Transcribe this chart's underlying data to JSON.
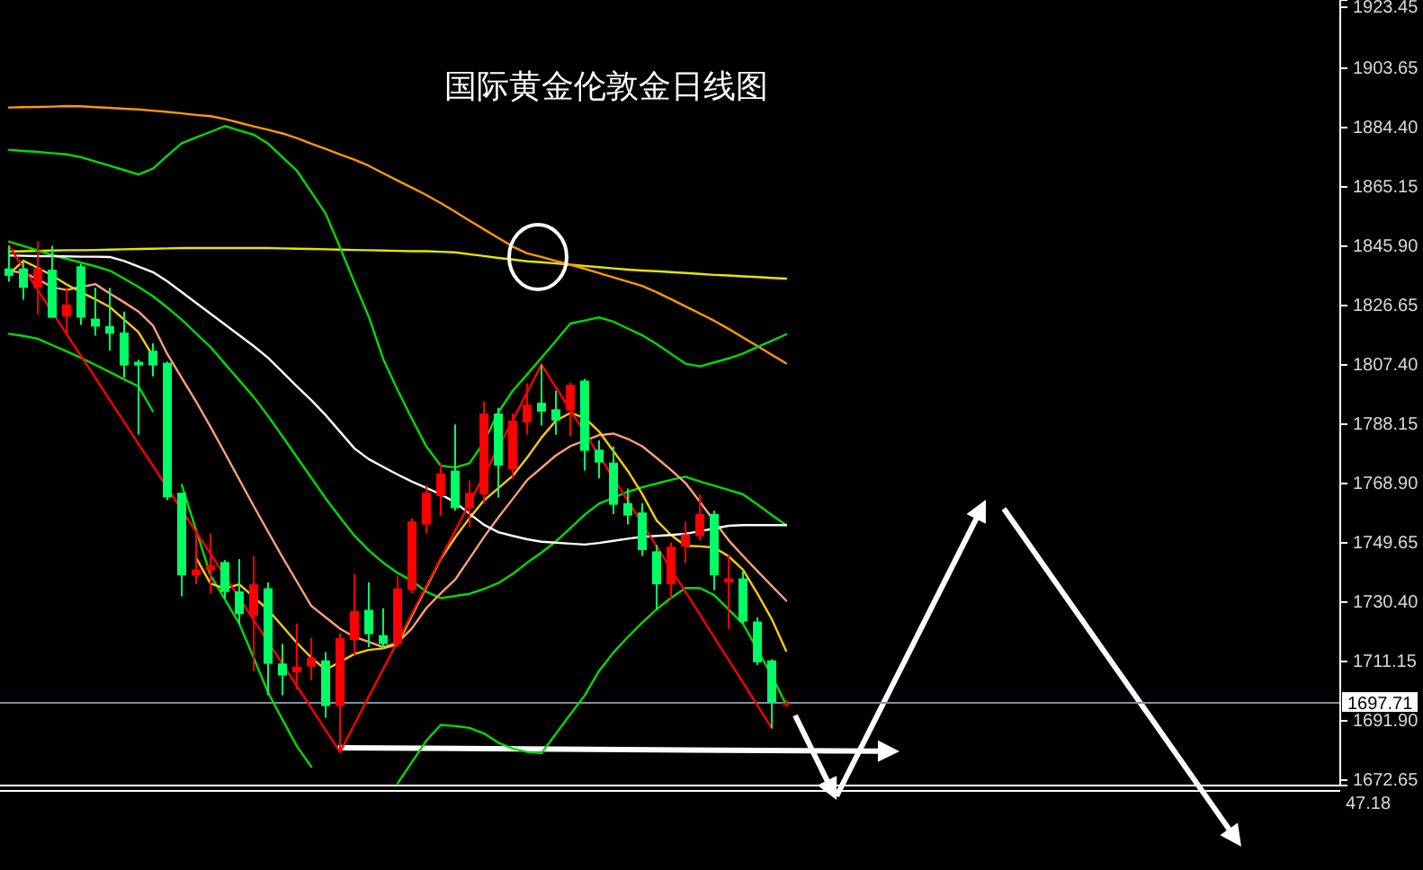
{
  "chart_data": {
    "type": "candlestick",
    "title": "国际黄金伦敦金日线图",
    "categories": [
      null,
      null,
      null,
      null,
      null,
      null,
      null,
      null,
      null,
      null,
      null,
      null,
      null,
      null,
      null,
      null,
      null,
      null,
      null,
      null,
      null,
      null,
      null,
      null,
      null,
      null,
      null,
      null,
      null,
      null,
      null,
      null,
      null,
      null,
      null,
      null,
      null,
      null,
      null,
      null,
      null,
      null,
      null,
      null,
      null,
      null,
      null,
      null,
      null,
      null,
      null,
      null,
      null,
      null,
      null
    ],
    "ohlc": [
      [
        1838.7,
        1846.0,
        1834.4,
        1836.3
      ],
      [
        1838.7,
        1841.2,
        1828.5,
        1832.4
      ],
      [
        1832.4,
        1847.6,
        1823.7,
        1838.7
      ],
      [
        1838.3,
        1846.0,
        1822.7,
        1822.7
      ],
      [
        1823.1,
        1832.4,
        1816.9,
        1827.0
      ],
      [
        1839.4,
        1840.2,
        1820.4,
        1822.7
      ],
      [
        1822.4,
        1832.4,
        1816.9,
        1819.8
      ],
      [
        1820.0,
        1832.4,
        1812.0,
        1817.5
      ],
      [
        1817.9,
        1824.7,
        1803.3,
        1807.2
      ],
      [
        1808.4,
        1809.1,
        1784.8,
        1807.2
      ],
      [
        1812.0,
        1814.4,
        1803.7,
        1807.2
      ],
      [
        1808.1,
        1808.5,
        1763.5,
        1764.4
      ],
      [
        1765.9,
        1765.9,
        1732.3,
        1739.1
      ],
      [
        1739.1,
        1752.7,
        1736.2,
        1741.0
      ],
      [
        1740.7,
        1752.7,
        1733.3,
        1742.4
      ],
      [
        1743.4,
        1744.0,
        1731.4,
        1733.7
      ],
      [
        1733.9,
        1744.4,
        1723.5,
        1726.5
      ],
      [
        1725.9,
        1745.4,
        1708.0,
        1736.2
      ],
      [
        1734.9,
        1736.8,
        1700.2,
        1710.4
      ],
      [
        1710.5,
        1716.8,
        1700.2,
        1706.6
      ],
      [
        1707.6,
        1723.5,
        1702.2,
        1709.5
      ],
      [
        1709.5,
        1718.7,
        1705.1,
        1712.3
      ],
      [
        1711.5,
        1714.2,
        1692.9,
        1696.7
      ],
      [
        1696.7,
        1720.3,
        1681.8,
        1718.7
      ],
      [
        1718.1,
        1739.5,
        1712.9,
        1727.5
      ],
      [
        1727.9,
        1736.8,
        1715.8,
        1720.0
      ],
      [
        1719.7,
        1728.4,
        1715.4,
        1716.8
      ],
      [
        1716.8,
        1739.1,
        1715.8,
        1734.9
      ],
      [
        1734.3,
        1757.6,
        1733.3,
        1756.6
      ],
      [
        1755.6,
        1768.3,
        1752.7,
        1765.9
      ],
      [
        1764.8,
        1775.7,
        1758.5,
        1772.2
      ],
      [
        1773.1,
        1788.1,
        1760.1,
        1760.9
      ],
      [
        1760.9,
        1769.9,
        1754.7,
        1765.9
      ],
      [
        1765.4,
        1795.5,
        1762.4,
        1791.6
      ],
      [
        1791.6,
        1793.5,
        1764.4,
        1774.7
      ],
      [
        1773.5,
        1791.6,
        1770.6,
        1789.3
      ],
      [
        1788.7,
        1801.4,
        1784.8,
        1794.5
      ],
      [
        1795.1,
        1807.5,
        1787.7,
        1792.2
      ],
      [
        1793.0,
        1799.0,
        1784.8,
        1789.3
      ],
      [
        1792.6,
        1801.7,
        1784.2,
        1800.9
      ],
      [
        1802.3,
        1802.9,
        1773.1,
        1779.5
      ],
      [
        1779.9,
        1782.9,
        1770.6,
        1775.7
      ],
      [
        1775.7,
        1780.9,
        1759.0,
        1762.0
      ],
      [
        1762.5,
        1767.3,
        1755.6,
        1758.5
      ],
      [
        1759.5,
        1762.5,
        1745.4,
        1747.3
      ],
      [
        1746.9,
        1748.9,
        1727.9,
        1736.2
      ],
      [
        1736.2,
        1749.8,
        1731.4,
        1748.4
      ],
      [
        1748.4,
        1756.6,
        1743.0,
        1752.4
      ],
      [
        1751.8,
        1765.4,
        1750.4,
        1759.0
      ],
      [
        1759.0,
        1760.1,
        1734.3,
        1739.1
      ],
      [
        1736.8,
        1745.9,
        1721.6,
        1738.1
      ],
      [
        1738.1,
        1741.0,
        1723.5,
        1724.1
      ],
      [
        1724.1,
        1725.5,
        1710.0,
        1710.9
      ],
      [
        1711.5,
        1711.9,
        1689.5,
        1697.9
      ],
      [
        1697.5,
        1698.7,
        1696.4,
        1697.71
      ]
    ],
    "colors": [
      "#00ff66",
      "#00ff66",
      "#ff0000",
      "#00ff66",
      "#ff0000",
      "#00ff66",
      "#00ff66",
      "#00ff66",
      "#00ff66",
      "#00ff66",
      "#00ff66",
      "#00ff66",
      "#00ff66",
      "#ff0000",
      "#ff0000",
      "#00ff66",
      "#00ff66",
      "#ff0000",
      "#00ff66",
      "#00ff66",
      "#ff0000",
      "#ff0000",
      "#00ff66",
      "#ff0000",
      "#ff0000",
      "#00ff66",
      "#00ff66",
      "#ff0000",
      "#ff0000",
      "#ff0000",
      "#ff0000",
      "#00ff66",
      "#ff0000",
      "#ff0000",
      "#00ff66",
      "#ff0000",
      "#ff0000",
      "#00ff66",
      "#00ff66",
      "#ff0000",
      "#00ff66",
      "#00ff66",
      "#00ff66",
      "#00ff66",
      "#00ff66",
      "#00ff66",
      "#ff0000",
      "#ff0000",
      "#ff0000",
      "#00ff66",
      "#ff0000",
      "#00ff66",
      "#00ff66",
      "#00ff66",
      "#ff0000"
    ],
    "series": [
      {
        "type": "line",
        "color": "#e6e600",
        "values": [
          1844.2,
          1844.3,
          1844.4,
          1844.5,
          1844.6,
          1844.6,
          1844.7,
          1844.8,
          1844.9,
          1845.0,
          1845.1,
          1845.2,
          1845.3,
          1845.3,
          1845.3,
          1845.3,
          1845.3,
          1845.3,
          1845.3,
          1845.2,
          1845.1,
          1845.0,
          1844.9,
          1844.8,
          1844.7,
          1844.6,
          1844.5,
          1844.4,
          1844.3,
          1844.3,
          1844.1,
          1843.9,
          1843.3,
          1842.7,
          1842.1,
          1841.6,
          1841.0,
          1840.7,
          1840.3,
          1839.9,
          1839.5,
          1839.1,
          1838.7,
          1838.3,
          1838.0,
          1837.8,
          1837.5,
          1837.2,
          1836.9,
          1836.6,
          1836.4,
          1836.1,
          1835.9,
          1835.6,
          1835.4
        ]
      },
      {
        "type": "line",
        "color": "#ff9900",
        "values": [
          1890.9,
          1891.0,
          1891.1,
          1891.2,
          1891.4,
          1891.3,
          1891.0,
          1890.8,
          1890.5,
          1890.3,
          1889.9,
          1889.5,
          1889.0,
          1888.5,
          1888.1,
          1887.2,
          1886.0,
          1884.8,
          1883.7,
          1882.5,
          1881.0,
          1879.2,
          1877.5,
          1875.7,
          1874.0,
          1872.0,
          1869.6,
          1867.2,
          1864.9,
          1862.5,
          1859.9,
          1857.1,
          1854.2,
          1851.4,
          1848.6,
          1845.8,
          1843.6,
          1842.4,
          1841.1,
          1839.9,
          1838.6,
          1837.2,
          1835.8,
          1834.4,
          1833.0,
          1831.0,
          1828.7,
          1826.4,
          1824.1,
          1821.7,
          1819.1,
          1816.3,
          1813.5,
          1810.7,
          1807.9
        ]
      },
      {
        "type": "line",
        "color": "#00dd00",
        "values": [
          1877.2,
          1876.8,
          1876.5,
          1876.1,
          1875.7,
          1874.8,
          1873.4,
          1872.0,
          1870.6,
          1869.2,
          1871.1,
          1875.3,
          1879.3,
          1881.2,
          1883.0,
          1884.9,
          1883.5,
          1882.1,
          1879.2,
          1874.8,
          1870.4,
          1863.5,
          1856.5,
          1845.5,
          1834.1,
          1823.0,
          1809.3,
          1799.2,
          1789.9,
          1780.9,
          1774.7,
          1774.1,
          1775.5,
          1782.3,
          1792.0,
          1799.0,
          1804.3,
          1809.7,
          1815.2,
          1820.8,
          1821.8,
          1822.8,
          1821.4,
          1819.2,
          1817.0,
          1814.2,
          1811.0,
          1807.8,
          1806.9,
          1808.2,
          1809.5,
          1811.1,
          1813.2,
          1815.2,
          1817.3
        ]
      },
      {
        "type": "line",
        "color": "#00dd00",
        "values": [
          1847.4,
          1846.0,
          1844.5,
          1843.1,
          1841.8,
          1840.6,
          1839.4,
          1838.0,
          1835.4,
          1832.7,
          1829.7,
          1826.0,
          1822.1,
          1817.6,
          1813.2,
          1807.8,
          1802.4,
          1797.0,
          1790.8,
          1784.2,
          1777.5,
          1770.8,
          1764.1,
          1757.9,
          1752.0,
          1747.2,
          1743.2,
          1739.9,
          1737.3,
          1733.8,
          1731.7,
          1732.4,
          1733.1,
          1734.7,
          1736.6,
          1739.6,
          1743.2,
          1746.5,
          1750.1,
          1754.4,
          1758.8,
          1762.4,
          1764.3,
          1766.2,
          1767.7,
          1768.9,
          1770.1,
          1771.1,
          1769.6,
          1768.2,
          1766.8,
          1765.4,
          1762.1,
          1758.7,
          1755.4
        ]
      },
      {
        "type": "line",
        "color": "#00dd00",
        "values": [
          1817.5,
          1816.8,
          1815.9,
          1813.8,
          1811.8,
          1809.7,
          1807.4,
          1805.1,
          1802.7,
          1800.4,
          1792.3,
          null,
          1768.5,
          1753.8,
          1739.1,
          1731.3,
          1723.4,
          1712.3,
          1701.1,
          1692.3,
          1683.7,
          1677.0,
          null,
          null,
          null,
          null,
          null,
          null,
          null,
          null,
          null,
          null,
          null,
          null,
          null,
          null,
          null,
          null,
          null,
          null,
          null,
          null,
          null,
          null,
          null,
          null,
          null,
          null,
          null,
          null,
          null,
          null,
          null,
          null,
          null
        ]
      },
      {
        "type": "line",
        "color": "#00dd00",
        "values": [
          null,
          null,
          null,
          null,
          null,
          null,
          null,
          null,
          null,
          null,
          null,
          null,
          null,
          null,
          null,
          null,
          null,
          null,
          null,
          null,
          null,
          null,
          null,
          null,
          null,
          null,
          null,
          1671.6,
          1678.5,
          1685.5,
          1690.6,
          1690.2,
          1689.6,
          1687.8,
          1684.8,
          1682.9,
          1681.8,
          1681.4,
          1687.7,
          1694.0,
          1700.1,
          1708.1,
          1714.1,
          1719.1,
          1723.8,
          1728.1,
          1731.8,
          1735.0,
          1735.0,
          1732.7,
          1728.0,
          1723.4,
          1715.0,
          1706.6,
          1697.1
        ]
      },
      {
        "type": "line",
        "color": "#ffa07a",
        "values": [
          1837.9,
          1837.3,
          1835.2,
          1832.6,
          1831.7,
          1832.7,
          1833.6,
          1830.6,
          1827.7,
          1824.7,
          1820.2,
          1810.9,
          1803.2,
          1795.5,
          1787.3,
          1778.8,
          1770.2,
          1761.6,
          1753.3,
          1745.0,
          1737.1,
          1729.2,
          1725.5,
          1721.8,
          1719.1,
          1717.5,
          1715.8,
          1717.2,
          1721.9,
          1728.5,
          1733.3,
          1737.7,
          1744.6,
          1751.5,
          1757.9,
          1763.9,
          1770.0,
          1774.0,
          1778.0,
          1781.0,
          1782.8,
          1784.6,
          1785.1,
          1783.4,
          1781.0,
          1777.2,
          1773.3,
          1769.1,
          1763.0,
          1756.7,
          1750.5,
          1745.4,
          1740.5,
          1735.7,
          1730.9
        ]
      },
      {
        "type": "line",
        "color": "#ffcc00",
        "values": [
          1836.8,
          1841.2,
          1838.9,
          1836.4,
          1833.5,
          1831.0,
          1828.7,
          1826.2,
          1822.1,
          1818.0,
          1810.2,
          null,
          null,
          1744.8,
          1736.4,
          1734.9,
          1736.2,
          1732.1,
          1727.9,
          1722.6,
          1717.2,
          1712.4,
          1708.5,
          1711.0,
          1713.6,
          1714.9,
          1715.4,
          1716.7,
          1726.0,
          1735.2,
          1744.4,
          1751.4,
          1757.7,
          1763.4,
          1767.4,
          1771.4,
          1777.3,
          1783.8,
          1789.3,
          1791.8,
          1790.2,
          1785.8,
          1779.4,
          1773.0,
          1765.5,
          1756.9,
          1752.2,
          1748.7,
          1748.5,
          1748.1,
          1745.3,
          1740.9,
          1733.2,
          1724.9,
          1714.6
        ]
      },
      {
        "type": "line",
        "color": "#ffffff",
        "values": [
          1842.9,
          1842.8,
          1842.7,
          1842.7,
          1842.6,
          1842.5,
          1842.5,
          1842.4,
          1841.1,
          1839.3,
          1837.5,
          1834.5,
          1831.0,
          1827.5,
          1824.0,
          1820.5,
          1817.0,
          1813.5,
          1809.7,
          1805.1,
          1800.4,
          1796.0,
          1791.1,
          1785.7,
          1780.3,
          1776.8,
          1774.3,
          1771.8,
          1769.5,
          1767.5,
          1765.4,
          1762.8,
          1759.1,
          1755.5,
          1753.1,
          1751.9,
          1750.8,
          1750.0,
          1749.7,
          1749.4,
          1749.1,
          1749.6,
          1750.3,
          1751.0,
          1751.6,
          1751.9,
          1752.2,
          1752.6,
          1753.4,
          1754.3,
          1755.2,
          1755.4,
          1755.4,
          1755.4,
          1755.4
        ]
      },
      {
        "type": "line",
        "color": "#ff0000",
        "values": [
          1846.0,
          1838.9,
          1831.7,
          1824.6,
          1817.4,
          1810.3,
          1803.2,
          1796.0,
          1788.9,
          1781.7,
          1774.6,
          1767.5,
          1760.3,
          1753.2,
          1746.1,
          1738.9,
          1731.8,
          1724.6,
          1717.5,
          1710.4,
          1703.2,
          1696.1,
          1688.9,
          1681.8,
          1690.8,
          1699.8,
          1708.7,
          1717.7,
          1726.7,
          1735.7,
          1744.7,
          1753.6,
          1762.6,
          1771.6,
          1780.6,
          1789.5,
          1798.5,
          1807.5,
          1800.1,
          1792.8,
          1785.4,
          1778.0,
          1770.6,
          1763.3,
          1755.9,
          1748.5,
          1741.1,
          1733.8,
          1726.4,
          1719.0,
          1711.6,
          1704.3,
          1696.9,
          1689.5,
          null
        ]
      }
    ],
    "ylim": [
      1670.9,
      1925.8
    ],
    "yticks": [
      1923.45,
      1903.65,
      {
        "value": 1884.4,
        "label": "1884.40"
      },
      1865.15,
      {
        "value": 1845.9,
        "label": "1845.90"
      },
      1826.65,
      {
        "value": 1807.4,
        "label": "1807.40"
      },
      1788.15,
      {
        "value": 1768.9,
        "label": "1768.90"
      },
      1749.65,
      {
        "value": 1730.4,
        "label": "1730.40"
      },
      1711.15,
      {
        "value": 1691.9,
        "label": "1691.90"
      },
      1672.65
    ],
    "ref_lines": [
      {
        "axis": "y",
        "value": 1697.71,
        "label": "1697.71",
        "color": "#8090a0"
      }
    ],
    "annotations": [
      "47.18"
    ],
    "tick_labels": "y",
    "grid": false
  }
}
